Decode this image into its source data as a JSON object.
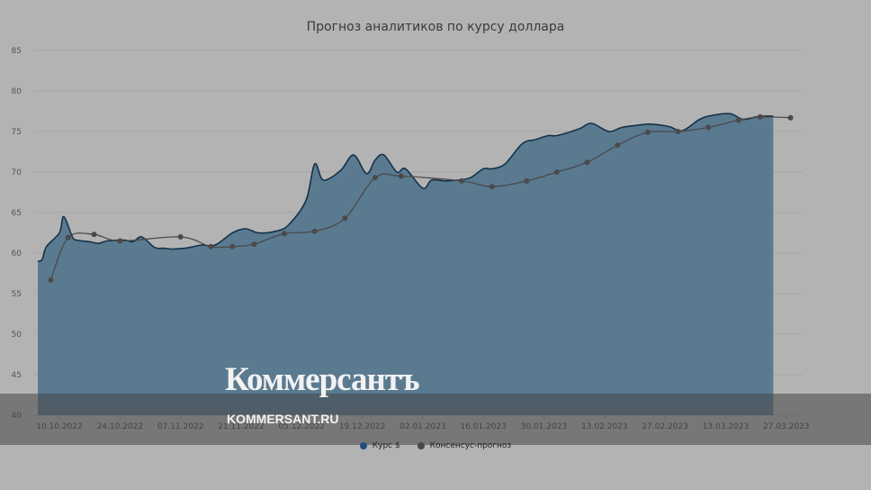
{
  "chart_data": {
    "type": "area",
    "title": "Прогноз аналитиков по курсу доллара",
    "ylim": [
      40,
      85
    ],
    "yticks": [
      40,
      45,
      50,
      55,
      60,
      65,
      70,
      75,
      80,
      85
    ],
    "xticks": [
      "10.10.2022",
      "24.10.2022",
      "07.11.2022",
      "21.11.2022",
      "05.12.2022",
      "19.12.2022",
      "02.01.2023",
      "16.01.2023",
      "30.01.2023",
      "13.02.2023",
      "27.02.2023",
      "13.03.2023",
      "27.03.2023"
    ],
    "grid": true,
    "legend_position": "bottom",
    "series": [
      {
        "name": "Курс $",
        "type": "area",
        "color": "#5a7a90",
        "dot_color": "#1f4e79",
        "x": [
          "2022-10-05",
          "2022-10-06",
          "2022-10-07",
          "2022-10-10",
          "2022-10-11",
          "2022-10-13",
          "2022-10-14",
          "2022-10-17",
          "2022-10-19",
          "2022-10-21",
          "2022-10-25",
          "2022-10-27",
          "2022-10-29",
          "2022-11-01",
          "2022-11-03",
          "2022-11-05",
          "2022-11-08",
          "2022-11-10",
          "2022-11-12",
          "2022-11-15",
          "2022-11-19",
          "2022-11-22",
          "2022-11-25",
          "2022-11-29",
          "2022-12-02",
          "2022-12-06",
          "2022-12-08",
          "2022-12-10",
          "2022-12-14",
          "2022-12-17",
          "2022-12-20",
          "2022-12-22",
          "2022-12-24",
          "2022-12-27",
          "2022-12-29",
          "2023-01-02",
          "2023-01-04",
          "2023-01-07",
          "2023-01-10",
          "2023-01-13",
          "2023-01-16",
          "2023-01-18",
          "2023-01-21",
          "2023-01-25",
          "2023-01-28",
          "2023-01-31",
          "2023-02-02",
          "2023-02-07",
          "2023-02-10",
          "2023-02-14",
          "2023-02-17",
          "2023-02-21",
          "2023-02-24",
          "2023-02-28",
          "2023-03-03",
          "2023-03-07",
          "2023-03-10",
          "2023-03-14",
          "2023-03-17",
          "2023-03-20",
          "2023-03-22",
          "2023-03-24"
        ],
        "values": [
          59.0,
          59.2,
          60.8,
          62.5,
          64.5,
          62.0,
          61.6,
          61.4,
          61.2,
          61.5,
          61.6,
          61.4,
          62.0,
          60.7,
          60.6,
          60.5,
          60.6,
          60.8,
          61.0,
          61.0,
          62.5,
          63.0,
          62.5,
          62.7,
          63.5,
          66.5,
          71.0,
          69.0,
          70.2,
          72.1,
          69.8,
          71.5,
          72.1,
          70.0,
          70.4,
          68.0,
          69.0,
          68.9,
          69.0,
          69.3,
          70.4,
          70.4,
          71.0,
          73.5,
          74.0,
          74.5,
          74.5,
          75.3,
          76.0,
          75.0,
          75.5,
          75.8,
          75.9,
          75.6,
          75.1,
          76.5,
          77.0,
          77.2,
          76.5,
          76.8,
          76.9,
          76.9
        ],
        "baseline": 40
      },
      {
        "name": "Консенсус-прогноз",
        "type": "line",
        "color": "#4a4a4a",
        "x": [
          "2022-10-08",
          "2022-10-12",
          "2022-10-18",
          "2022-10-24",
          "2022-11-07",
          "2022-11-14",
          "2022-11-19",
          "2022-11-24",
          "2022-12-01",
          "2022-12-08",
          "2022-12-15",
          "2022-12-22",
          "2022-12-28",
          "2023-01-11",
          "2023-01-18",
          "2023-01-26",
          "2023-02-02",
          "2023-02-09",
          "2023-02-16",
          "2023-02-23",
          "2023-03-02",
          "2023-03-09",
          "2023-03-16",
          "2023-03-21",
          "2023-03-28"
        ],
        "values": [
          56.7,
          61.9,
          62.3,
          61.5,
          62.0,
          60.8,
          60.8,
          61.1,
          62.4,
          62.7,
          64.3,
          69.3,
          69.5,
          68.9,
          68.2,
          68.9,
          70.0,
          71.2,
          73.3,
          74.9,
          75.0,
          75.5,
          76.4,
          76.8,
          76.7
        ]
      }
    ]
  },
  "legend": {
    "usd_label": "Курс $",
    "forecast_label": "Консенсус-прогноз",
    "usd_dot_color": "#1f4e79",
    "forecast_dot_color": "#4a4a4a"
  },
  "watermark": {
    "logo": "Коммерсантъ",
    "url": "KOMMERSANT.RU"
  }
}
